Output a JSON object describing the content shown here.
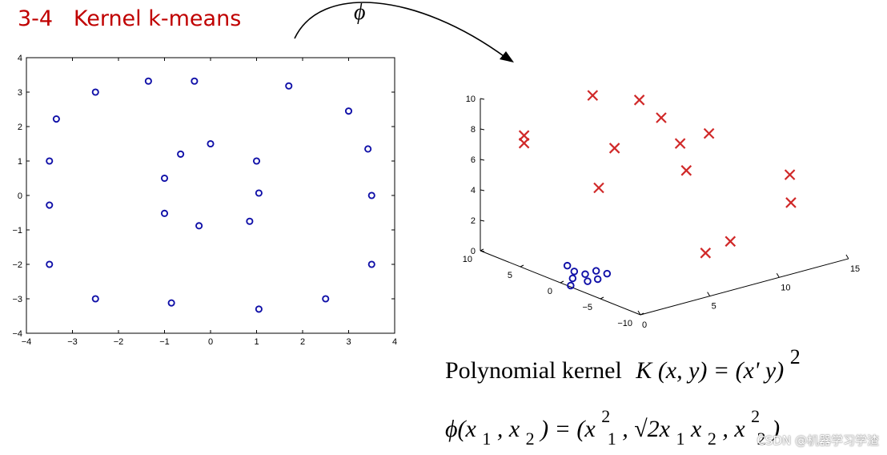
{
  "title": "3-4   Kernel k-means",
  "map_symbol": "ϕ",
  "chart_data": [
    {
      "type": "scatter",
      "xlim": [
        -4,
        4
      ],
      "ylim": [
        -4,
        4
      ],
      "xticks": [
        "−4",
        "−3",
        "−2",
        "−1",
        "0",
        "1",
        "2",
        "3",
        "4"
      ],
      "yticks": [
        "−4",
        "−3",
        "−2",
        "−1",
        "0",
        "1",
        "2",
        "3",
        "4"
      ],
      "grid": false,
      "marker": "circle",
      "marker_color": "#1010a8",
      "points": [
        [
          -3.35,
          2.22
        ],
        [
          -3.5,
          1.0
        ],
        [
          -3.5,
          -0.28
        ],
        [
          -3.5,
          -2.0
        ],
        [
          -2.5,
          3.0
        ],
        [
          -2.5,
          -3.0
        ],
        [
          -1.35,
          3.32
        ],
        [
          -0.35,
          3.32
        ],
        [
          1.7,
          3.18
        ],
        [
          3.0,
          2.45
        ],
        [
          3.42,
          1.35
        ],
        [
          3.5,
          0.0
        ],
        [
          3.5,
          -2.0
        ],
        [
          2.5,
          -3.0
        ],
        [
          1.05,
          -3.3
        ],
        [
          -0.85,
          -3.12
        ],
        [
          -0.65,
          1.2
        ],
        [
          0.0,
          1.5
        ],
        [
          1.0,
          1.0
        ],
        [
          1.05,
          0.07
        ],
        [
          -1.0,
          0.5
        ],
        [
          -1.0,
          -0.52
        ],
        [
          -0.25,
          -0.88
        ],
        [
          0.85,
          -0.75
        ]
      ]
    },
    {
      "type": "scatter",
      "projection": "3d",
      "xlim": [
        0,
        15
      ],
      "ylim": [
        -10,
        10
      ],
      "zlim": [
        0,
        10
      ],
      "xticks": [
        "0",
        "5",
        "10",
        "15"
      ],
      "yticks": [
        "−10",
        "−5",
        "0",
        "5",
        "10"
      ],
      "zticks": [
        "0",
        "2",
        "4",
        "6",
        "8",
        "10"
      ],
      "grid": false,
      "series": [
        {
          "marker": "cross",
          "color": "#d02828",
          "points": [
            [
              2.0,
              8.0,
              7.5
            ],
            [
              2.0,
              8.0,
              7.0
            ],
            [
              5.5,
              5.5,
              9.8
            ],
            [
              8.0,
              4.0,
              9.2
            ],
            [
              9.0,
              3.0,
              8.0
            ],
            [
              6.5,
              4.5,
              6.3
            ],
            [
              9.5,
              1.5,
              6.5
            ],
            [
              11.0,
              0.5,
              7.0
            ],
            [
              8.5,
              -1.0,
              5.5
            ],
            [
              4.5,
              3.0,
              4.5
            ],
            [
              12.5,
              -7.0,
              5.5
            ],
            [
              12.0,
              -8.0,
              4.0
            ],
            [
              7.0,
              -6.0,
              1.5
            ],
            [
              8.5,
              -6.5,
              2.0
            ]
          ]
        },
        {
          "marker": "circle",
          "color": "#1010a8",
          "points": [
            [
              0.5,
              0.0,
              1.0
            ],
            [
              1.0,
              0.0,
              0.5
            ],
            [
              1.0,
              0.2,
              0.0
            ],
            [
              1.5,
              -0.5,
              0.3
            ],
            [
              2.0,
              -1.0,
              0.5
            ],
            [
              2.5,
              -1.5,
              0.3
            ],
            [
              2.0,
              -1.2,
              0.0
            ],
            [
              1.5,
              -0.8,
              -0.1
            ],
            [
              0.8,
              0.1,
              -0.4
            ]
          ]
        }
      ]
    }
  ],
  "formula_kernel": {
    "label": "Polynomial kernel",
    "K": "K",
    "args": "(x, y) = (x' y)",
    "power": "2"
  },
  "formula_phi": {
    "lhs_open": "ϕ(x",
    "sub1": "1",
    "comma": ", x",
    "sub2": "2",
    "mid": ") = (x",
    "sup_a": "2",
    "sub_a": "1",
    "sqrt_part": ", √2x",
    "sub_b1": "1",
    "x2": "x",
    "sub_b2": "2",
    "comma2": ", x",
    "sup_c": "2",
    "sub_c": "2",
    "close": ")"
  },
  "watermark": "CSDN @机器学习学渣"
}
